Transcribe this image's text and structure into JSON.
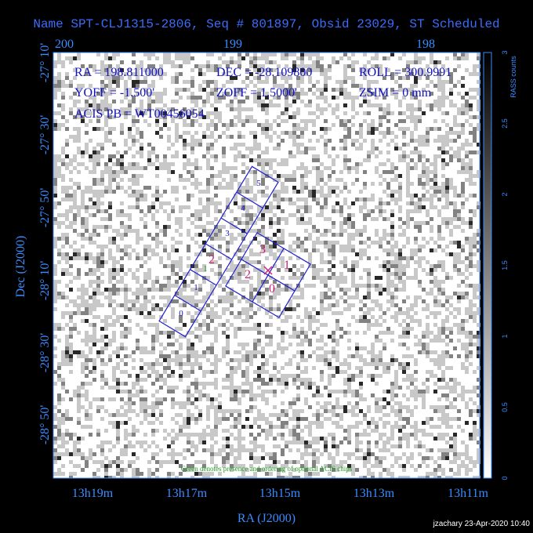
{
  "title": "Name SPT-CLJ1315-2806, Seq # 801897, Obsid 23029, ST Scheduled",
  "info": {
    "lines": [
      [
        "RA = 198.811000",
        "DEC = -28.109800",
        "ROLL = 300.9991"
      ],
      [
        "YOFF = -1.500'",
        "ZOFF = 1.5000'",
        "ZSIM = 0 mm"
      ],
      [
        "ACIS PB = WT00456054"
      ]
    ]
  },
  "axes": {
    "top": [
      "200",
      "199",
      "198"
    ],
    "left": [
      "-27° 10'",
      "-27° 30'",
      "-27° 50'",
      "-28° 10'",
      "-28° 30'",
      "-28° 50'"
    ],
    "bottom": [
      "13h19m",
      "13h17m",
      "13h15m",
      "13h13m",
      "13h11m"
    ],
    "x_title": "RA (J2000)",
    "y_title": "Dec (J2000)"
  },
  "chips": {
    "acis_s": [
      "0",
      "1",
      "2",
      "3",
      "4",
      "5"
    ],
    "optional": "1",
    "acis_i": [
      "0",
      "1",
      "2",
      "3"
    ]
  },
  "note": "Green denotes presence and ordering of optional ACIS chips",
  "colorbar": {
    "title": "RASS counts",
    "ticks": [
      "0",
      "0.5",
      "1",
      "1.5",
      "2",
      "2.5",
      "3"
    ]
  },
  "footer": "jzachary 23-Apr-2020 10:40"
}
